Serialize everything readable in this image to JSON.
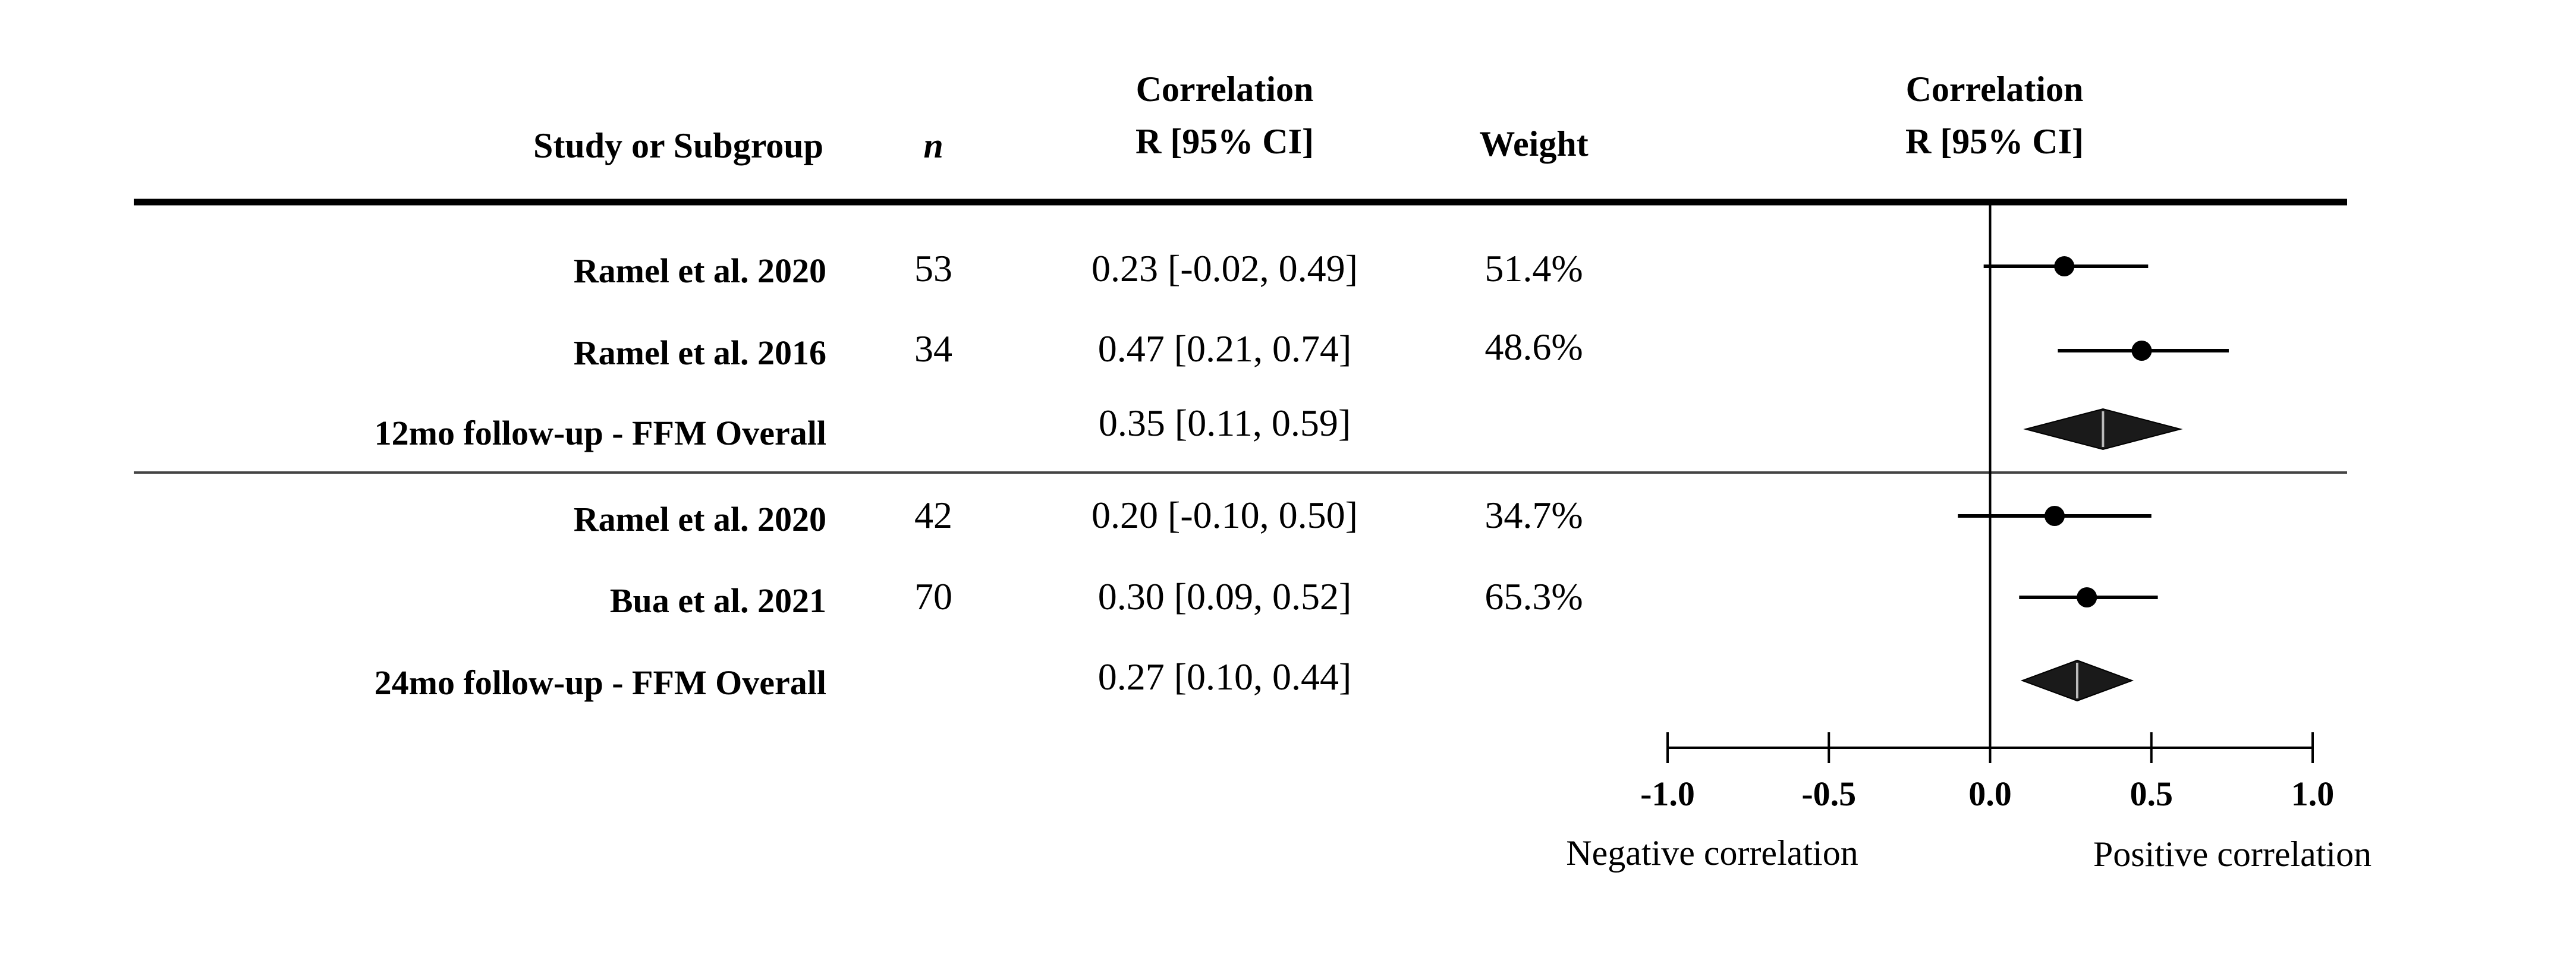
{
  "headers": {
    "study": "Study or Subgroup",
    "n": "n",
    "corr_line1": "Correlation",
    "corr_line2": "R [95% CI]",
    "weight": "Weight",
    "plot_line1": "Correlation",
    "plot_line2": "R [95% CI]"
  },
  "chart_data": {
    "type": "forest",
    "xlim": [
      -1.0,
      1.0
    ],
    "xticks": [
      "-1.0",
      "-0.5",
      "0.0",
      "0.5",
      "1.0"
    ],
    "left_axis_label": "Negative correlation",
    "right_axis_label": "Positive correlation",
    "groups": [
      {
        "studies": [
          {
            "name": "Ramel et al. 2020",
            "n": "53",
            "ci_text": "0.23 [-0.02, 0.49]",
            "weight": "51.4%",
            "r": 0.23,
            "lo": -0.02,
            "hi": 0.49
          },
          {
            "name": "Ramel et al. 2016",
            "n": "34",
            "ci_text": "0.47 [0.21, 0.74]",
            "weight": "48.6%",
            "r": 0.47,
            "lo": 0.21,
            "hi": 0.74
          }
        ],
        "overall": {
          "name": "12mo follow-up - FFM Overall",
          "ci_text": "0.35 [0.11, 0.59]",
          "r": 0.35,
          "lo": 0.11,
          "hi": 0.59
        }
      },
      {
        "studies": [
          {
            "name": "Ramel et al. 2020",
            "n": "42",
            "ci_text": "0.20 [-0.10, 0.50]",
            "weight": "34.7%",
            "r": 0.2,
            "lo": -0.1,
            "hi": 0.5
          },
          {
            "name": "Bua et al. 2021",
            "n": "70",
            "ci_text": "0.30 [0.09, 0.52]",
            "weight": "65.3%",
            "r": 0.3,
            "lo": 0.09,
            "hi": 0.52
          }
        ],
        "overall": {
          "name": "24mo follow-up - FFM Overall",
          "ci_text": "0.27 [0.10, 0.44]",
          "r": 0.27,
          "lo": 0.1,
          "hi": 0.44
        }
      }
    ]
  }
}
